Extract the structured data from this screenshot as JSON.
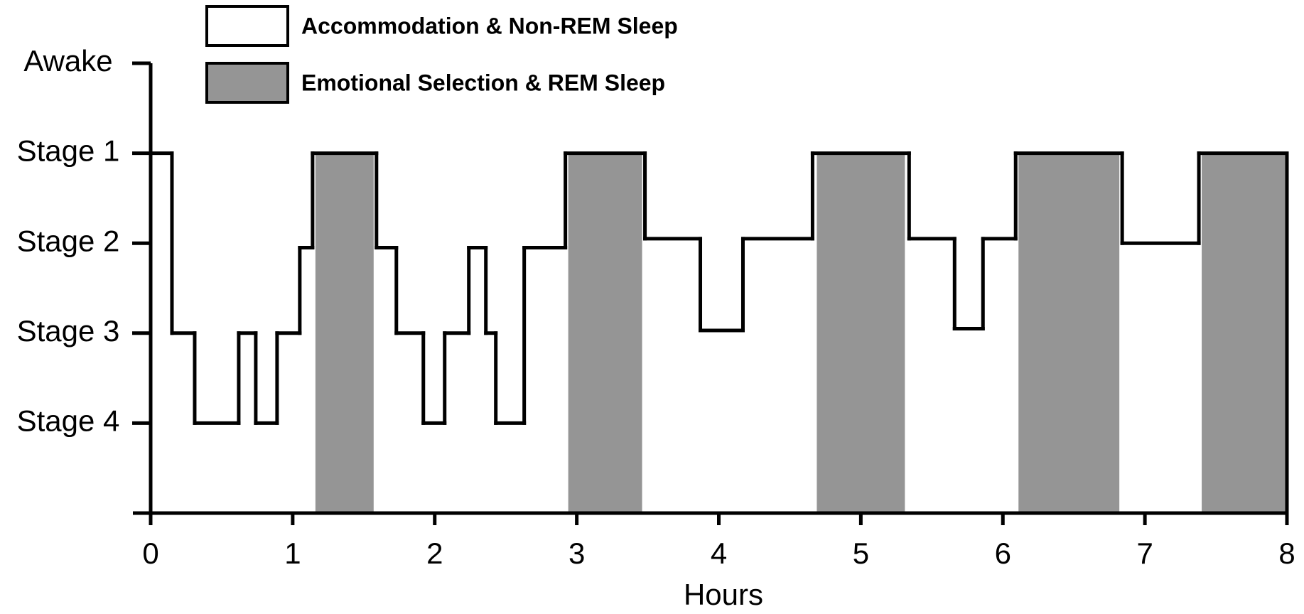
{
  "chart_data": {
    "type": "hypnogram",
    "x_label": "Hours",
    "xlim": [
      0,
      8
    ],
    "xticks": [
      0,
      1,
      2,
      3,
      4,
      5,
      6,
      7,
      8
    ],
    "ylim": [
      0,
      5
    ],
    "y_inverted": true,
    "yticks": [
      {
        "value": 0,
        "label": "Awake"
      },
      {
        "value": 1,
        "label": "Stage 1"
      },
      {
        "value": 2,
        "label": "Stage 2"
      },
      {
        "value": 3,
        "label": "Stage 3"
      },
      {
        "value": 4,
        "label": "Stage 4"
      }
    ],
    "hypnogram": {
      "color": "#000000",
      "x": [
        0,
        0.15,
        0.31,
        0.62,
        0.74,
        0.89,
        1.05,
        1.14,
        1.59,
        1.73,
        1.92,
        2.07,
        2.24,
        2.36,
        2.43,
        2.63,
        2.92,
        3.48,
        3.87,
        4.17,
        4.66,
        5.34,
        5.66,
        5.86,
        6.09,
        6.84,
        7.38
      ],
      "values": [
        1,
        3,
        4,
        3,
        4,
        3,
        2.05,
        1,
        2.05,
        3,
        4,
        3,
        2.05,
        3,
        4,
        2.05,
        1,
        1.95,
        2.97,
        1.95,
        1,
        1.95,
        2.95,
        1.95,
        1,
        2,
        1
      ]
    },
    "series": [
      {
        "name": "Accommodation & Non-REM Sleep",
        "color": "#ffffff"
      },
      {
        "name": "Emotional Selection & REM Sleep",
        "color": "#959595",
        "level": 1,
        "periods": [
          [
            1.16,
            1.57
          ],
          [
            2.94,
            3.46
          ],
          [
            4.69,
            5.31
          ],
          [
            6.11,
            6.82
          ],
          [
            7.4,
            8.0
          ]
        ]
      }
    ]
  }
}
